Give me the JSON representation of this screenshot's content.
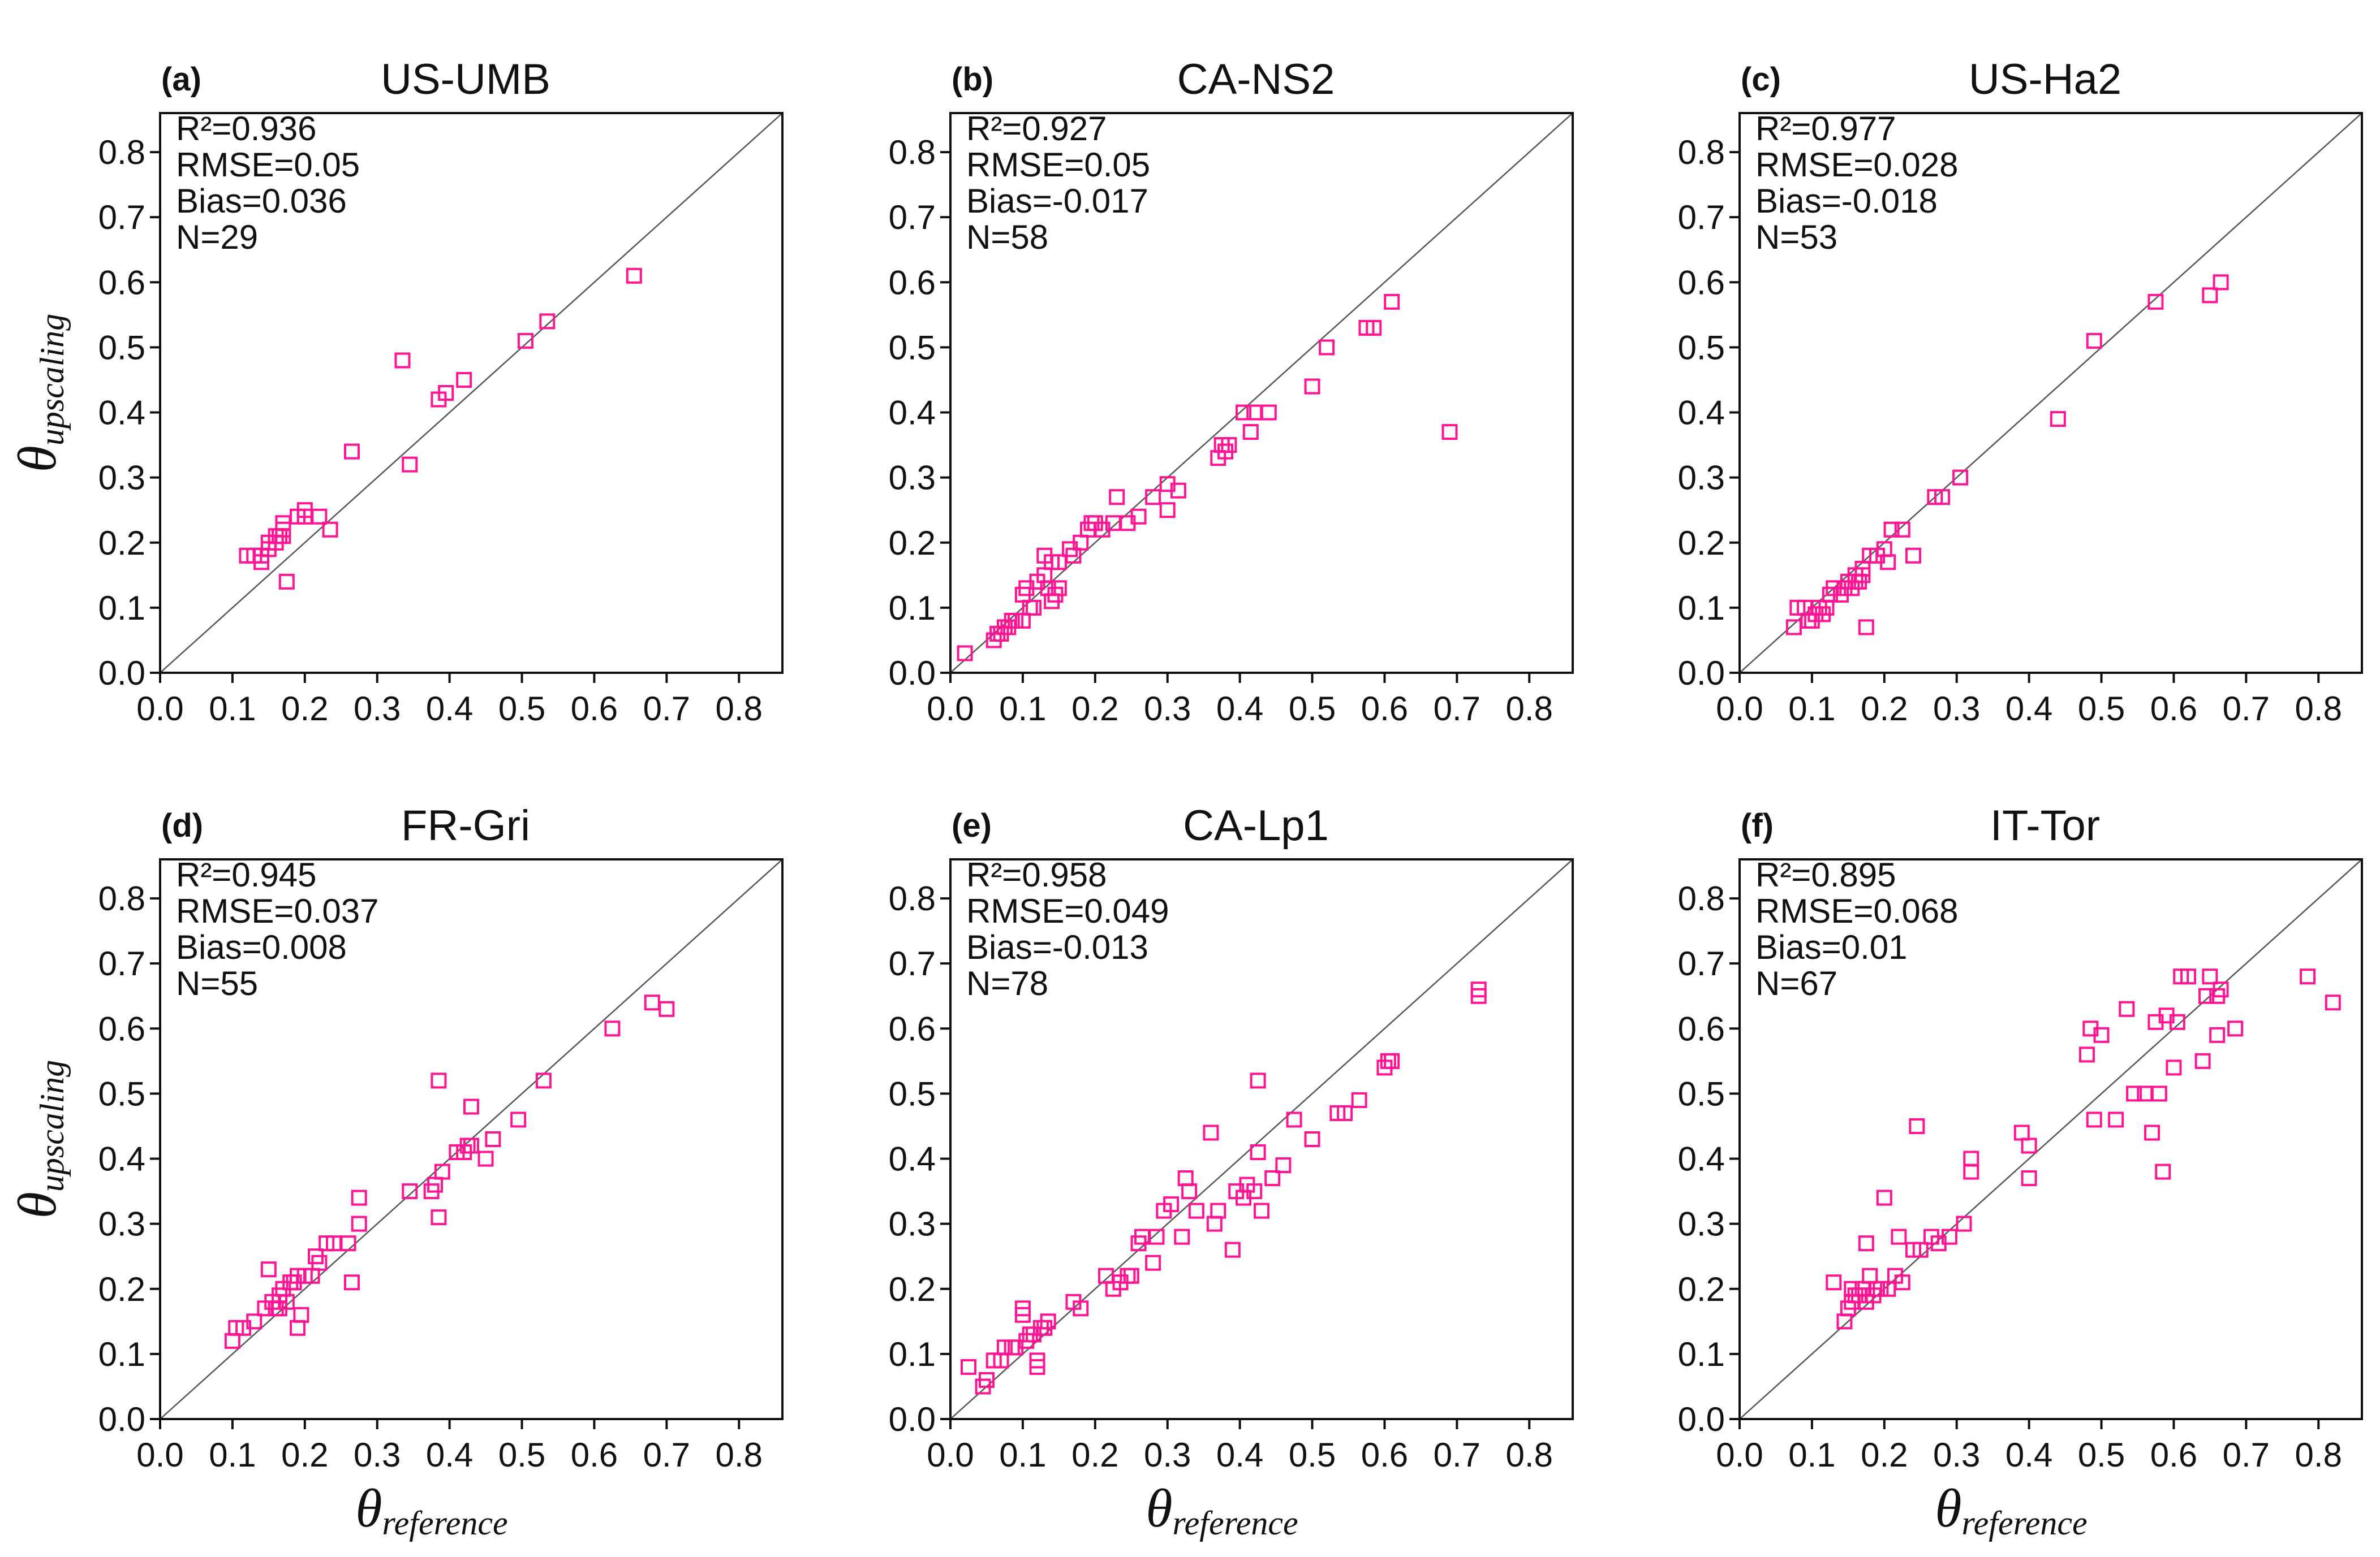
{
  "figure": {
    "marker_color": "#ff1493",
    "identity_line_color": "#555555",
    "xlabel": {
      "symbol": "θ",
      "subscript": "reference"
    },
    "ylabel": {
      "symbol": "θ",
      "subscript": "upscaling"
    }
  },
  "chart_data": [
    {
      "type": "scatter",
      "panel": "(a)",
      "title": "US-UMB",
      "stats": {
        "r2": "R²=0.936",
        "rmse": "RMSE=0.05",
        "bias": "Bias=0.036",
        "n": "N=29"
      },
      "xlim": [
        0,
        0.86
      ],
      "ylim": [
        0,
        0.86
      ],
      "xticks": [
        "0.0",
        "0.1",
        "0.2",
        "0.3",
        "0.4",
        "0.5",
        "0.6",
        "0.7",
        "0.8"
      ],
      "yticks": [
        "0.0",
        "0.1",
        "0.2",
        "0.3",
        "0.4",
        "0.5",
        "0.6",
        "0.7",
        "0.8"
      ],
      "identity_line": true,
      "points": [
        [
          0.12,
          0.18
        ],
        [
          0.13,
          0.18
        ],
        [
          0.14,
          0.17
        ],
        [
          0.14,
          0.18
        ],
        [
          0.15,
          0.19
        ],
        [
          0.15,
          0.2
        ],
        [
          0.16,
          0.21
        ],
        [
          0.16,
          0.2
        ],
        [
          0.165,
          0.21
        ],
        [
          0.17,
          0.21
        ],
        [
          0.17,
          0.22
        ],
        [
          0.17,
          0.23
        ],
        [
          0.175,
          0.14
        ],
        [
          0.19,
          0.24
        ],
        [
          0.2,
          0.25
        ],
        [
          0.2,
          0.24
        ],
        [
          0.22,
          0.24
        ],
        [
          0.235,
          0.22
        ],
        [
          0.265,
          0.34
        ],
        [
          0.335,
          0.48
        ],
        [
          0.345,
          0.32
        ],
        [
          0.385,
          0.42
        ],
        [
          0.395,
          0.43
        ],
        [
          0.42,
          0.45
        ],
        [
          0.505,
          0.51
        ],
        [
          0.535,
          0.54
        ],
        [
          0.655,
          0.61
        ]
      ]
    },
    {
      "type": "scatter",
      "panel": "(b)",
      "title": "CA-NS2",
      "stats": {
        "r2": "R²=0.927",
        "rmse": "RMSE=0.05",
        "bias": "Bias=-0.017",
        "n": "N=58"
      },
      "xlim": [
        0,
        0.86
      ],
      "ylim": [
        0,
        0.86
      ],
      "xticks": [
        "0.0",
        "0.1",
        "0.2",
        "0.3",
        "0.4",
        "0.5",
        "0.6",
        "0.7",
        "0.8"
      ],
      "yticks": [
        "0.0",
        "0.1",
        "0.2",
        "0.3",
        "0.4",
        "0.5",
        "0.6",
        "0.7",
        "0.8"
      ],
      "identity_line": true,
      "points": [
        [
          0.02,
          0.03
        ],
        [
          0.06,
          0.05
        ],
        [
          0.065,
          0.06
        ],
        [
          0.07,
          0.06
        ],
        [
          0.075,
          0.07
        ],
        [
          0.08,
          0.07
        ],
        [
          0.085,
          0.08
        ],
        [
          0.09,
          0.08
        ],
        [
          0.1,
          0.08
        ],
        [
          0.1,
          0.12
        ],
        [
          0.105,
          0.13
        ],
        [
          0.11,
          0.1
        ],
        [
          0.115,
          0.1
        ],
        [
          0.12,
          0.14
        ],
        [
          0.13,
          0.15
        ],
        [
          0.13,
          0.18
        ],
        [
          0.135,
          0.13
        ],
        [
          0.14,
          0.17
        ],
        [
          0.14,
          0.11
        ],
        [
          0.145,
          0.12
        ],
        [
          0.15,
          0.13
        ],
        [
          0.15,
          0.17
        ],
        [
          0.165,
          0.19
        ],
        [
          0.17,
          0.18
        ],
        [
          0.18,
          0.2
        ],
        [
          0.19,
          0.22
        ],
        [
          0.195,
          0.23
        ],
        [
          0.2,
          0.23
        ],
        [
          0.21,
          0.22
        ],
        [
          0.225,
          0.23
        ],
        [
          0.23,
          0.27
        ],
        [
          0.245,
          0.23
        ],
        [
          0.26,
          0.24
        ],
        [
          0.28,
          0.27
        ],
        [
          0.3,
          0.29
        ],
        [
          0.3,
          0.25
        ],
        [
          0.315,
          0.28
        ],
        [
          0.37,
          0.33
        ],
        [
          0.375,
          0.35
        ],
        [
          0.38,
          0.34
        ],
        [
          0.385,
          0.35
        ],
        [
          0.405,
          0.4
        ],
        [
          0.415,
          0.37
        ],
        [
          0.42,
          0.4
        ],
        [
          0.44,
          0.4
        ],
        [
          0.5,
          0.44
        ],
        [
          0.52,
          0.5
        ],
        [
          0.575,
          0.53
        ],
        [
          0.585,
          0.53
        ],
        [
          0.61,
          0.57
        ],
        [
          0.69,
          0.37
        ]
      ]
    },
    {
      "type": "scatter",
      "panel": "(c)",
      "title": "US-Ha2",
      "stats": {
        "r2": "R²=0.977",
        "rmse": "RMSE=0.028",
        "bias": "Bias=-0.018",
        "n": "N=53"
      },
      "xlim": [
        0,
        0.86
      ],
      "ylim": [
        0,
        0.86
      ],
      "xticks": [
        "0.0",
        "0.1",
        "0.2",
        "0.3",
        "0.4",
        "0.5",
        "0.6",
        "0.7",
        "0.8"
      ],
      "yticks": [
        "0.0",
        "0.1",
        "0.2",
        "0.3",
        "0.4",
        "0.5",
        "0.6",
        "0.7",
        "0.8"
      ],
      "identity_line": true,
      "points": [
        [
          0.075,
          0.07
        ],
        [
          0.08,
          0.1
        ],
        [
          0.09,
          0.1
        ],
        [
          0.095,
          0.08
        ],
        [
          0.1,
          0.08
        ],
        [
          0.105,
          0.09
        ],
        [
          0.11,
          0.1
        ],
        [
          0.115,
          0.09
        ],
        [
          0.12,
          0.1
        ],
        [
          0.125,
          0.12
        ],
        [
          0.13,
          0.13
        ],
        [
          0.14,
          0.12
        ],
        [
          0.145,
          0.13
        ],
        [
          0.15,
          0.14
        ],
        [
          0.155,
          0.13
        ],
        [
          0.16,
          0.14
        ],
        [
          0.16,
          0.15
        ],
        [
          0.165,
          0.14
        ],
        [
          0.17,
          0.15
        ],
        [
          0.17,
          0.16
        ],
        [
          0.175,
          0.07
        ],
        [
          0.18,
          0.18
        ],
        [
          0.19,
          0.18
        ],
        [
          0.2,
          0.19
        ],
        [
          0.205,
          0.17
        ],
        [
          0.21,
          0.22
        ],
        [
          0.225,
          0.22
        ],
        [
          0.24,
          0.18
        ],
        [
          0.27,
          0.27
        ],
        [
          0.28,
          0.27
        ],
        [
          0.305,
          0.3
        ],
        [
          0.44,
          0.39
        ],
        [
          0.49,
          0.51
        ],
        [
          0.575,
          0.57
        ],
        [
          0.65,
          0.58
        ],
        [
          0.665,
          0.6
        ]
      ]
    },
    {
      "type": "scatter",
      "panel": "(d)",
      "title": "FR-Gri",
      "stats": {
        "r2": "R²=0.945",
        "rmse": "RMSE=0.037",
        "bias": "Bias=0.008",
        "n": "N=55"
      },
      "xlim": [
        0,
        0.86
      ],
      "ylim": [
        0,
        0.86
      ],
      "xticks": [
        "0.0",
        "0.1",
        "0.2",
        "0.3",
        "0.4",
        "0.5",
        "0.6",
        "0.7",
        "0.8"
      ],
      "yticks": [
        "0.0",
        "0.1",
        "0.2",
        "0.3",
        "0.4",
        "0.5",
        "0.6",
        "0.7",
        "0.8"
      ],
      "identity_line": true,
      "points": [
        [
          0.1,
          0.12
        ],
        [
          0.105,
          0.14
        ],
        [
          0.115,
          0.14
        ],
        [
          0.13,
          0.15
        ],
        [
          0.145,
          0.17
        ],
        [
          0.15,
          0.23
        ],
        [
          0.155,
          0.18
        ],
        [
          0.16,
          0.17
        ],
        [
          0.165,
          0.17
        ],
        [
          0.165,
          0.19
        ],
        [
          0.17,
          0.2
        ],
        [
          0.175,
          0.18
        ],
        [
          0.18,
          0.21
        ],
        [
          0.185,
          0.21
        ],
        [
          0.19,
          0.14
        ],
        [
          0.19,
          0.22
        ],
        [
          0.195,
          0.16
        ],
        [
          0.2,
          0.22
        ],
        [
          0.21,
          0.22
        ],
        [
          0.215,
          0.25
        ],
        [
          0.22,
          0.24
        ],
        [
          0.23,
          0.27
        ],
        [
          0.24,
          0.27
        ],
        [
          0.26,
          0.27
        ],
        [
          0.265,
          0.21
        ],
        [
          0.275,
          0.3
        ],
        [
          0.275,
          0.34
        ],
        [
          0.345,
          0.35
        ],
        [
          0.375,
          0.35
        ],
        [
          0.38,
          0.36
        ],
        [
          0.385,
          0.31
        ],
        [
          0.385,
          0.52
        ],
        [
          0.39,
          0.38
        ],
        [
          0.41,
          0.41
        ],
        [
          0.42,
          0.41
        ],
        [
          0.425,
          0.42
        ],
        [
          0.43,
          0.42
        ],
        [
          0.43,
          0.48
        ],
        [
          0.45,
          0.4
        ],
        [
          0.46,
          0.43
        ],
        [
          0.495,
          0.46
        ],
        [
          0.53,
          0.52
        ],
        [
          0.625,
          0.6
        ],
        [
          0.68,
          0.64
        ],
        [
          0.7,
          0.63
        ]
      ]
    },
    {
      "type": "scatter",
      "panel": "(e)",
      "title": "CA-Lp1",
      "stats": {
        "r2": "R²=0.958",
        "rmse": "RMSE=0.049",
        "bias": "Bias=-0.013",
        "n": "N=78"
      },
      "xlim": [
        0,
        0.86
      ],
      "ylim": [
        0,
        0.86
      ],
      "xticks": [
        "0.0",
        "0.1",
        "0.2",
        "0.3",
        "0.4",
        "0.5",
        "0.6",
        "0.7",
        "0.8"
      ],
      "yticks": [
        "0.0",
        "0.1",
        "0.2",
        "0.3",
        "0.4",
        "0.5",
        "0.6",
        "0.7",
        "0.8"
      ],
      "identity_line": true,
      "points": [
        [
          0.025,
          0.08
        ],
        [
          0.045,
          0.05
        ],
        [
          0.05,
          0.06
        ],
        [
          0.06,
          0.09
        ],
        [
          0.07,
          0.09
        ],
        [
          0.075,
          0.11
        ],
        [
          0.085,
          0.11
        ],
        [
          0.09,
          0.11
        ],
        [
          0.1,
          0.17
        ],
        [
          0.1,
          0.16
        ],
        [
          0.105,
          0.12
        ],
        [
          0.11,
          0.13
        ],
        [
          0.115,
          0.13
        ],
        [
          0.12,
          0.08
        ],
        [
          0.12,
          0.09
        ],
        [
          0.125,
          0.14
        ],
        [
          0.13,
          0.14
        ],
        [
          0.135,
          0.15
        ],
        [
          0.17,
          0.18
        ],
        [
          0.18,
          0.17
        ],
        [
          0.215,
          0.22
        ],
        [
          0.225,
          0.2
        ],
        [
          0.235,
          0.21
        ],
        [
          0.245,
          0.22
        ],
        [
          0.25,
          0.22
        ],
        [
          0.26,
          0.27
        ],
        [
          0.265,
          0.28
        ],
        [
          0.28,
          0.24
        ],
        [
          0.285,
          0.28
        ],
        [
          0.295,
          0.32
        ],
        [
          0.305,
          0.33
        ],
        [
          0.32,
          0.28
        ],
        [
          0.325,
          0.37
        ],
        [
          0.33,
          0.35
        ],
        [
          0.34,
          0.32
        ],
        [
          0.36,
          0.44
        ],
        [
          0.365,
          0.3
        ],
        [
          0.37,
          0.32
        ],
        [
          0.39,
          0.26
        ],
        [
          0.395,
          0.35
        ],
        [
          0.405,
          0.34
        ],
        [
          0.41,
          0.36
        ],
        [
          0.42,
          0.35
        ],
        [
          0.425,
          0.41
        ],
        [
          0.425,
          0.52
        ],
        [
          0.43,
          0.32
        ],
        [
          0.445,
          0.37
        ],
        [
          0.46,
          0.39
        ],
        [
          0.475,
          0.46
        ],
        [
          0.5,
          0.43
        ],
        [
          0.535,
          0.47
        ],
        [
          0.545,
          0.47
        ],
        [
          0.565,
          0.49
        ],
        [
          0.6,
          0.54
        ],
        [
          0.605,
          0.55
        ],
        [
          0.61,
          0.55
        ],
        [
          0.73,
          0.65
        ],
        [
          0.73,
          0.66
        ]
      ]
    },
    {
      "type": "scatter",
      "panel": "(f)",
      "title": "IT-Tor",
      "stats": {
        "r2": "R²=0.895",
        "rmse": "RMSE=0.068",
        "bias": "Bias=0.01",
        "n": "N=67"
      },
      "xlim": [
        0,
        0.86
      ],
      "ylim": [
        0,
        0.86
      ],
      "xticks": [
        "0.0",
        "0.1",
        "0.2",
        "0.3",
        "0.4",
        "0.5",
        "0.6",
        "0.7",
        "0.8"
      ],
      "yticks": [
        "0.0",
        "0.1",
        "0.2",
        "0.3",
        "0.4",
        "0.5",
        "0.6",
        "0.7",
        "0.8"
      ],
      "identity_line": true,
      "points": [
        [
          0.13,
          0.21
        ],
        [
          0.145,
          0.15
        ],
        [
          0.15,
          0.17
        ],
        [
          0.155,
          0.18
        ],
        [
          0.155,
          0.2
        ],
        [
          0.16,
          0.19
        ],
        [
          0.165,
          0.19
        ],
        [
          0.17,
          0.2
        ],
        [
          0.175,
          0.18
        ],
        [
          0.175,
          0.27
        ],
        [
          0.18,
          0.22
        ],
        [
          0.185,
          0.19
        ],
        [
          0.19,
          0.2
        ],
        [
          0.195,
          0.2
        ],
        [
          0.2,
          0.34
        ],
        [
          0.205,
          0.2
        ],
        [
          0.215,
          0.22
        ],
        [
          0.22,
          0.28
        ],
        [
          0.225,
          0.21
        ],
        [
          0.24,
          0.26
        ],
        [
          0.245,
          0.45
        ],
        [
          0.25,
          0.26
        ],
        [
          0.265,
          0.28
        ],
        [
          0.275,
          0.27
        ],
        [
          0.29,
          0.28
        ],
        [
          0.31,
          0.3
        ],
        [
          0.32,
          0.38
        ],
        [
          0.32,
          0.4
        ],
        [
          0.39,
          0.44
        ],
        [
          0.4,
          0.42
        ],
        [
          0.4,
          0.37
        ],
        [
          0.48,
          0.56
        ],
        [
          0.485,
          0.6
        ],
        [
          0.49,
          0.46
        ],
        [
          0.5,
          0.59
        ],
        [
          0.52,
          0.46
        ],
        [
          0.535,
          0.63
        ],
        [
          0.545,
          0.5
        ],
        [
          0.56,
          0.5
        ],
        [
          0.57,
          0.44
        ],
        [
          0.575,
          0.61
        ],
        [
          0.58,
          0.5
        ],
        [
          0.585,
          0.38
        ],
        [
          0.59,
          0.62
        ],
        [
          0.6,
          0.54
        ],
        [
          0.605,
          0.61
        ],
        [
          0.61,
          0.68
        ],
        [
          0.62,
          0.68
        ],
        [
          0.64,
          0.55
        ],
        [
          0.645,
          0.65
        ],
        [
          0.65,
          0.68
        ],
        [
          0.66,
          0.59
        ],
        [
          0.66,
          0.65
        ],
        [
          0.665,
          0.66
        ],
        [
          0.685,
          0.6
        ],
        [
          0.785,
          0.68
        ],
        [
          0.82,
          0.64
        ]
      ]
    }
  ]
}
